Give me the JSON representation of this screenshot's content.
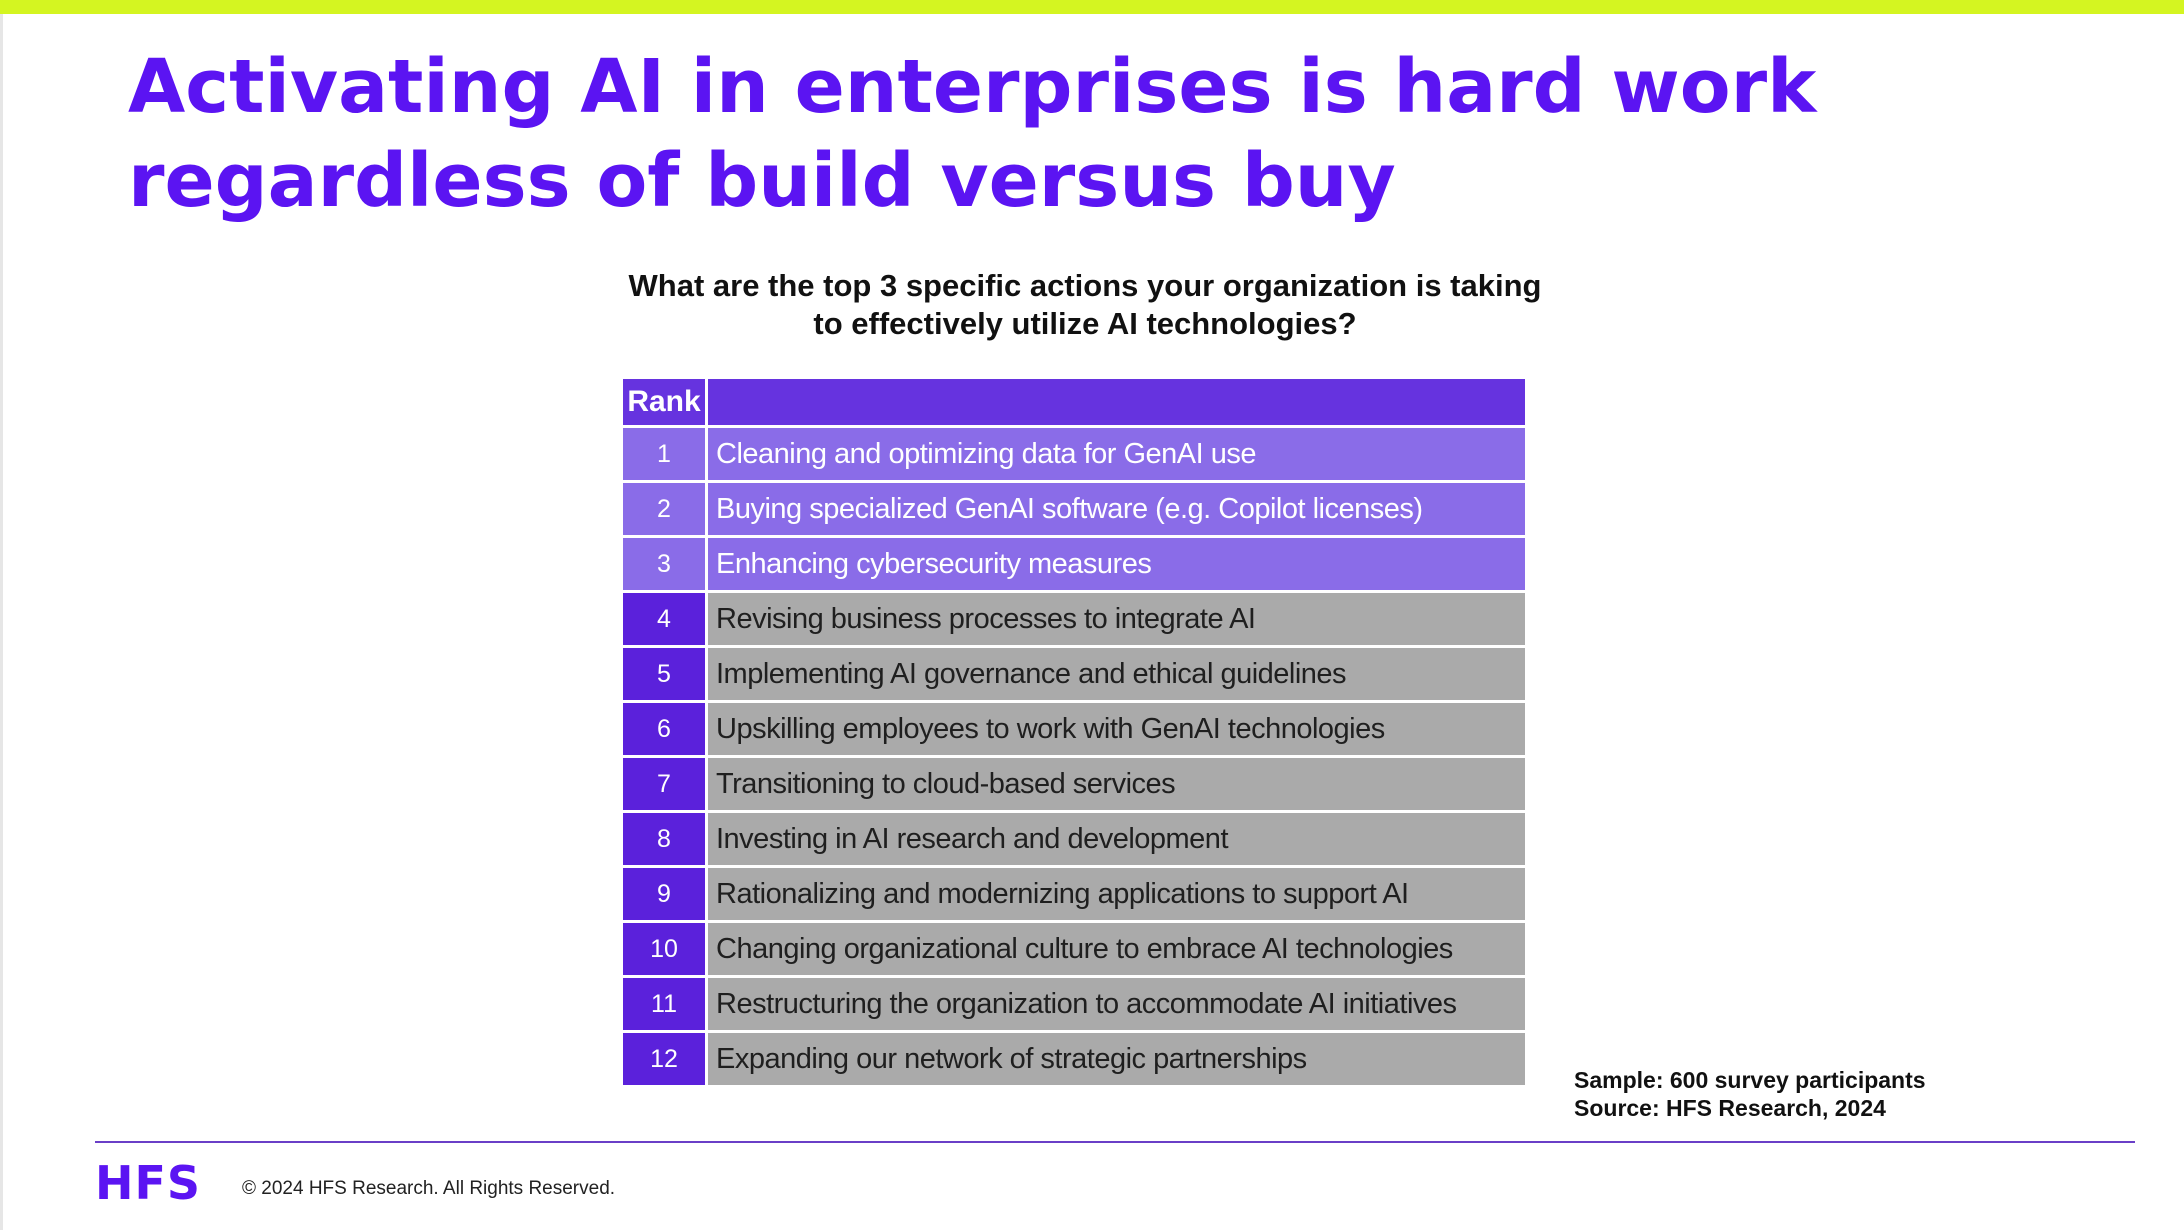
{
  "slide": {
    "title_lines": [
      "Activating AI in enterprises is hard work",
      "regardless of build versus buy"
    ],
    "question_lines": [
      "What are the top 3 specific actions your organization is taking",
      "to effectively utilize AI technologies?"
    ]
  },
  "table": {
    "header": {
      "rank": "Rank",
      "action": ""
    },
    "rows": [
      {
        "rank": "1",
        "action": "Cleaning and optimizing data for GenAI use"
      },
      {
        "rank": "2",
        "action": "Buying specialized GenAI software (e.g. Copilot licenses)"
      },
      {
        "rank": "3",
        "action": "Enhancing cybersecurity measures"
      },
      {
        "rank": "4",
        "action": "Revising business processes to integrate AI"
      },
      {
        "rank": "5",
        "action": "Implementing AI governance and ethical guidelines"
      },
      {
        "rank": "6",
        "action": "Upskilling employees to work with GenAI technologies"
      },
      {
        "rank": "7",
        "action": "Transitioning to cloud-based services"
      },
      {
        "rank": "8",
        "action": "Investing in AI research and development"
      },
      {
        "rank": "9",
        "action": "Rationalizing and modernizing applications to support AI"
      },
      {
        "rank": "10",
        "action": "Changing organizational culture to embrace AI technologies"
      },
      {
        "rank": "11",
        "action": "Restructuring the organization to accommodate AI initiatives"
      },
      {
        "rank": "12",
        "action": "Expanding our network of strategic partnerships"
      }
    ]
  },
  "source": {
    "sample": "Sample: 600 survey participants",
    "source": "Source: HFS Research, 2024"
  },
  "footer": {
    "logo": "HFS",
    "copyright": "© 2024 HFS Research. All Rights Reserved."
  },
  "colors": {
    "accent_bar": "#d4f521",
    "title": "#5b14f2",
    "header_fill": "#6633df",
    "top3_fill": "#8a6ce8",
    "rank_fill": "#5b21db",
    "other_fill": "#aaaaaa"
  }
}
